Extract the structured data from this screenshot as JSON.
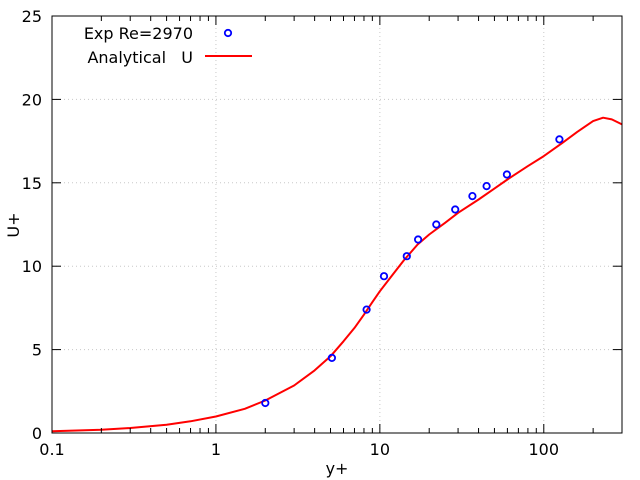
{
  "chart_data": {
    "type": "scatter",
    "title": "",
    "xlabel": "y+",
    "ylabel": "U+",
    "xscale": "log",
    "xlim": [
      0.1,
      300
    ],
    "ylim": [
      0,
      25
    ],
    "grid": true,
    "legend_position": "top-left",
    "x_ticks": [
      {
        "value": 0.1,
        "label": "0.1"
      },
      {
        "value": 1,
        "label": "1"
      },
      {
        "value": 10,
        "label": "10"
      },
      {
        "value": 100,
        "label": "100"
      }
    ],
    "y_ticks": [
      {
        "value": 0,
        "label": "0"
      },
      {
        "value": 5,
        "label": "5"
      },
      {
        "value": 10,
        "label": "10"
      },
      {
        "value": 15,
        "label": "15"
      },
      {
        "value": 20,
        "label": "20"
      },
      {
        "value": 25,
        "label": "25"
      }
    ],
    "series": [
      {
        "name": "Exp Re=2970",
        "type": "scatter",
        "marker": "open-circle",
        "color": "#0000ff",
        "x": [
          2.0,
          5.1,
          8.3,
          10.6,
          14.6,
          17.1,
          22.1,
          28.8,
          36.7,
          44.8,
          59.6,
          124.5
        ],
        "y": [
          1.8,
          4.5,
          7.4,
          9.4,
          10.6,
          11.6,
          12.5,
          13.4,
          14.2,
          14.8,
          15.5,
          17.6
        ]
      },
      {
        "name": "Analytical   U",
        "type": "line",
        "color": "#ff0000",
        "x": [
          0.1,
          0.2,
          0.3,
          0.5,
          0.7,
          1.0,
          1.5,
          2.0,
          3.0,
          4.0,
          5.0,
          6.0,
          7.0,
          8.0,
          9.0,
          10.0,
          12.0,
          14.0,
          17.0,
          20.0,
          25.0,
          30.0,
          40.0,
          50.0,
          60.0,
          80.0,
          100.0,
          130.0,
          160.0,
          200.0,
          230.0,
          260.0,
          300.0
        ],
        "y": [
          0.1,
          0.2,
          0.3,
          0.5,
          0.7,
          0.99,
          1.45,
          1.95,
          2.85,
          3.75,
          4.6,
          5.5,
          6.3,
          7.1,
          7.85,
          8.5,
          9.5,
          10.35,
          11.3,
          11.9,
          12.6,
          13.2,
          14.0,
          14.65,
          15.2,
          16.0,
          16.6,
          17.4,
          18.05,
          18.7,
          18.9,
          18.8,
          18.5
        ]
      }
    ]
  }
}
